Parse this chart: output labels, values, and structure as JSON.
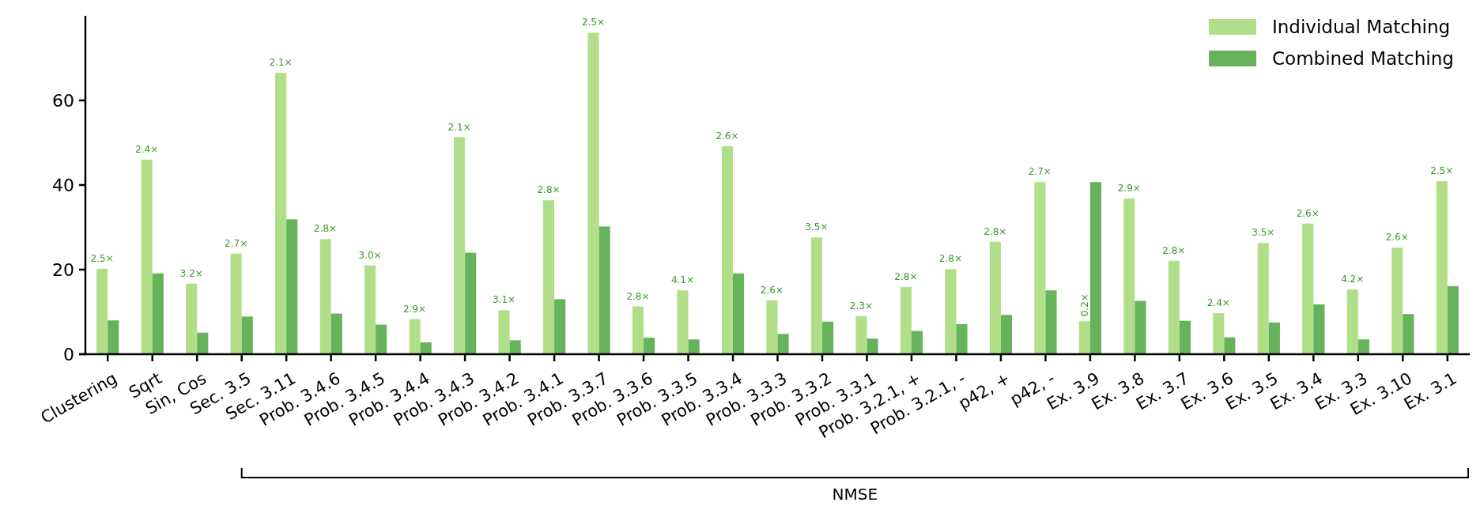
{
  "chart_data": {
    "type": "bar",
    "categories": [
      "Clustering",
      "Sqrt",
      "Sin, Cos",
      "Sec. 3.5",
      "Sec. 3.11",
      "Prob. 3.4.6",
      "Prob. 3.4.5",
      "Prob. 3.4.4",
      "Prob. 3.4.3",
      "Prob. 3.4.2",
      "Prob. 3.4.1",
      "Prob. 3.3.7",
      "Prob. 3.3.6",
      "Prob. 3.3.5",
      "Prob. 3.3.4",
      "Prob. 3.3.3",
      "Prob. 3.3.2",
      "Prob. 3.3.1",
      "Prob. 3.2.1, +",
      "Prob. 3.2.1, -",
      "p42, +",
      "p42, -",
      "Ex. 3.9",
      "Ex. 3.8",
      "Ex. 3.7",
      "Ex. 3.6",
      "Ex. 3.5",
      "Ex. 3.4",
      "Ex. 3.3",
      "Ex. 3.10",
      "Ex. 3.1"
    ],
    "series": [
      {
        "name": "Individual Matching",
        "color": "#b1df89",
        "values": [
          20.2,
          46,
          16.7,
          23.8,
          66.5,
          27.2,
          21,
          8.3,
          51.3,
          10.4,
          36.4,
          76,
          11.3,
          15.1,
          49.2,
          12.7,
          27.6,
          9,
          15.9,
          20.1,
          26.6,
          40.7,
          7.8,
          36.8,
          22.1,
          9.7,
          26.3,
          30.9,
          15.3,
          25.2,
          40.9
        ]
      },
      {
        "name": "Combined Matching",
        "color": "#66b35b",
        "values": [
          8,
          19.1,
          5.1,
          8.9,
          31.9,
          9.6,
          7,
          2.8,
          24,
          3.3,
          13,
          30.2,
          3.9,
          3.5,
          19.1,
          4.8,
          7.7,
          3.7,
          5.5,
          7.1,
          9.3,
          15.1,
          40.7,
          12.6,
          7.9,
          4,
          7.5,
          11.8,
          3.5,
          9.5,
          16.1
        ]
      }
    ],
    "ylim": [
      0,
      80
    ],
    "yticks": [
      0,
      20,
      40,
      60
    ],
    "grid": false,
    "legend": "top right",
    "annotations": [
      "NMSE",
      {
        "text": "2.5×",
        "x": "Clustering",
        "y": 20.2
      },
      {
        "text": "2.4×",
        "x": "Sqrt",
        "y": 46
      },
      {
        "text": "3.2×",
        "x": "Sin, Cos",
        "y": 16.7
      },
      {
        "text": "2.7×",
        "x": "Sec. 3.5",
        "y": 23.8
      },
      {
        "text": "2.1×",
        "x": "Sec. 3.11",
        "y": 66.5
      },
      {
        "text": "2.8×",
        "x": "Prob. 3.4.6",
        "y": 27.2
      },
      {
        "text": "3.0×",
        "x": "Prob. 3.4.5",
        "y": 21
      },
      {
        "text": "2.9×",
        "x": "Prob. 3.4.4",
        "y": 8.3
      },
      {
        "text": "2.1×",
        "x": "Prob. 3.4.3",
        "y": 51.3
      },
      {
        "text": "3.1×",
        "x": "Prob. 3.4.2",
        "y": 10.4
      },
      {
        "text": "2.8×",
        "x": "Prob. 3.4.1",
        "y": 36.4
      },
      {
        "text": "2.5×",
        "x": "Prob. 3.3.7",
        "y": 76
      },
      {
        "text": "2.8×",
        "x": "Prob. 3.3.6",
        "y": 11.3
      },
      {
        "text": "4.1×",
        "x": "Prob. 3.3.5",
        "y": 15.1
      },
      {
        "text": "2.6×",
        "x": "Prob. 3.3.4",
        "y": 49.2
      },
      {
        "text": "2.6×",
        "x": "Prob. 3.3.3",
        "y": 12.7
      },
      {
        "text": "3.5×",
        "x": "Prob. 3.3.2",
        "y": 27.6
      },
      {
        "text": "2.3×",
        "x": "Prob. 3.3.1",
        "y": 9
      },
      {
        "text": "2.8×",
        "x": "Prob. 3.2.1, +",
        "y": 15.9
      },
      {
        "text": "2.8×",
        "x": "Prob. 3.2.1, -",
        "y": 20.1
      },
      {
        "text": "2.8×",
        "x": "p42, +",
        "y": 26.6
      },
      {
        "text": "2.7×",
        "x": "p42, -",
        "y": 40.7
      },
      {
        "text": "0.2×",
        "x": "Ex. 3.9",
        "y": 7.8
      },
      {
        "text": "2.9×",
        "x": "Ex. 3.8",
        "y": 36.8
      },
      {
        "text": "2.8×",
        "x": "Ex. 3.7",
        "y": 22.1
      },
      {
        "text": "2.4×",
        "x": "Ex. 3.6",
        "y": 9.7
      },
      {
        "text": "3.5×",
        "x": "Ex. 3.5",
        "y": 26.3
      },
      {
        "text": "2.6×",
        "x": "Ex. 3.4",
        "y": 30.9
      },
      {
        "text": "4.2×",
        "x": "Ex. 3.3",
        "y": 15.3
      },
      {
        "text": "2.6×",
        "x": "Ex. 3.10",
        "y": 25.2
      },
      {
        "text": "2.5×",
        "x": "Ex. 3.1",
        "y": 40.9
      }
    ]
  }
}
